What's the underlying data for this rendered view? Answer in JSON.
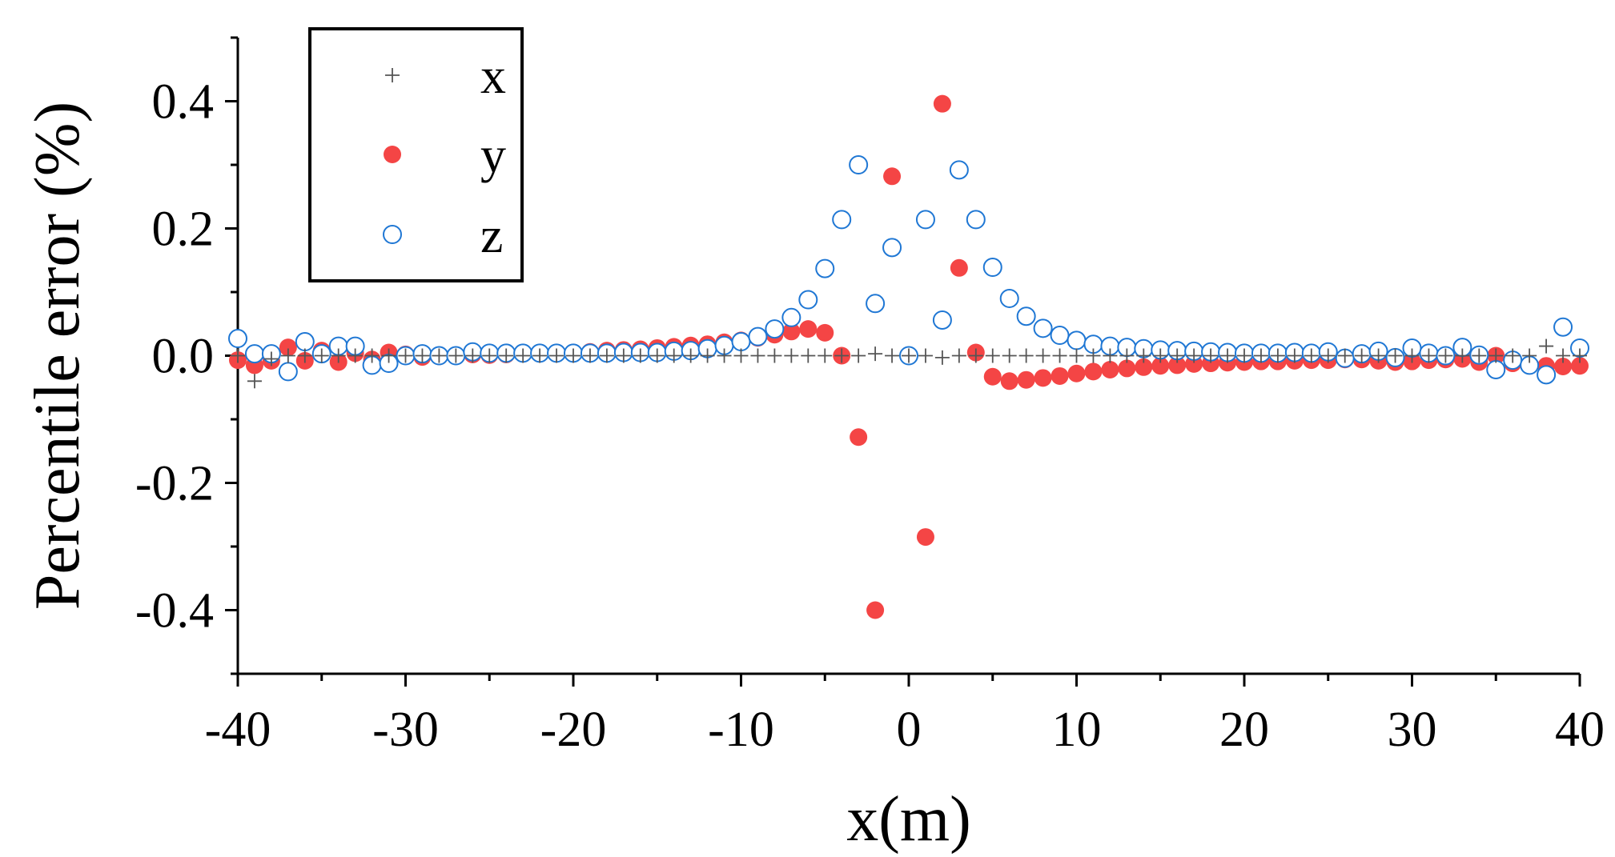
{
  "chart_data": {
    "type": "scatter",
    "title": "",
    "xlabel": "x(m)",
    "ylabel": "Percentile error (%)",
    "xlim": [
      -40,
      40
    ],
    "ylim": [
      -0.5,
      0.5
    ],
    "xticks": [
      -40,
      -30,
      -20,
      -10,
      0,
      10,
      20,
      30,
      40
    ],
    "xtick_labels": [
      "-40",
      "-30",
      "-20",
      "-10",
      "0",
      "10",
      "20",
      "30",
      "40"
    ],
    "yticks": [
      -0.4,
      -0.2,
      0.0,
      0.2,
      0.4
    ],
    "ytick_labels": [
      "-0.4",
      "-0.2",
      "0.0",
      "0.2",
      "0.4"
    ],
    "grid": false,
    "legend_position": "top-left",
    "colors": {
      "x": "#555555",
      "y": "#f44545",
      "z": "#1f77d4"
    },
    "series": [
      {
        "name": "x",
        "marker": "plus",
        "x": [
          -40,
          -39,
          -38,
          -37,
          -36,
          -35,
          -34,
          -33,
          -32,
          -31,
          -30,
          -29,
          -28,
          -27,
          -26,
          -25,
          -24,
          -23,
          -22,
          -21,
          -20,
          -19,
          -18,
          -17,
          -16,
          -15,
          -14,
          -13,
          -12,
          -11,
          -10,
          -9,
          -8,
          -7,
          -6,
          -5,
          -4,
          -3,
          -2,
          -1,
          0,
          1,
          2,
          3,
          4,
          5,
          6,
          7,
          8,
          9,
          10,
          11,
          12,
          13,
          14,
          15,
          16,
          17,
          18,
          19,
          20,
          21,
          22,
          23,
          24,
          25,
          26,
          27,
          28,
          29,
          30,
          31,
          32,
          33,
          34,
          35,
          36,
          37,
          38,
          39,
          40
        ],
        "y": [
          0.0,
          -0.04,
          -0.005,
          0.0,
          0.0,
          0.0,
          0.0,
          0.0,
          0.0,
          0.0,
          0.0,
          0.0,
          0.0,
          0.0,
          0.0,
          0.0,
          0.0,
          0.0,
          0.0,
          0.0,
          0.0,
          0.0,
          0.0,
          0.0,
          0.0,
          0.0,
          0.0,
          0.0,
          0.0,
          0.0,
          0.0,
          0.0,
          0.0,
          0.0,
          0.0,
          0.0,
          0.0,
          0.0,
          0.003,
          0.0,
          0.0,
          0.0,
          -0.003,
          0.0,
          0.0,
          0.0,
          0.0,
          0.0,
          0.0,
          0.0,
          0.0,
          0.0,
          0.0,
          0.0,
          0.0,
          0.0,
          0.0,
          0.0,
          0.0,
          0.0,
          0.0,
          0.0,
          0.0,
          0.0,
          0.0,
          0.0,
          0.0,
          0.0,
          0.0,
          0.0,
          0.0,
          0.0,
          0.0,
          0.0,
          0.0,
          0.0,
          0.0,
          0.0,
          0.015,
          0.0,
          0.0
        ]
      },
      {
        "name": "y",
        "marker": "filled-circle",
        "x": [
          -40,
          -39,
          -38,
          -37,
          -36,
          -35,
          -34,
          -33,
          -32,
          -31,
          -30,
          -29,
          -28,
          -27,
          -26,
          -25,
          -24,
          -23,
          -22,
          -21,
          -20,
          -19,
          -18,
          -17,
          -16,
          -15,
          -14,
          -13,
          -12,
          -11,
          -10,
          -9,
          -8,
          -7,
          -6,
          -5,
          -4,
          -3,
          -2,
          -1,
          0,
          1,
          2,
          3,
          4,
          5,
          6,
          7,
          8,
          9,
          10,
          11,
          12,
          13,
          14,
          15,
          16,
          17,
          18,
          19,
          20,
          21,
          22,
          23,
          24,
          25,
          26,
          27,
          28,
          29,
          30,
          31,
          32,
          33,
          34,
          35,
          36,
          37,
          38,
          39,
          40
        ],
        "y": [
          -0.007,
          -0.015,
          -0.008,
          0.013,
          -0.008,
          0.008,
          -0.01,
          0.004,
          -0.006,
          0.005,
          0.002,
          -0.002,
          -0.001,
          0.0,
          0.002,
          0.001,
          0.002,
          0.003,
          0.003,
          0.004,
          0.005,
          0.006,
          0.008,
          0.009,
          0.01,
          0.012,
          0.014,
          0.016,
          0.018,
          0.021,
          0.024,
          0.028,
          0.033,
          0.038,
          0.042,
          0.036,
          0.0,
          -0.128,
          -0.4,
          0.282,
          0.0,
          -0.285,
          0.396,
          0.138,
          0.005,
          -0.033,
          -0.04,
          -0.038,
          -0.035,
          -0.032,
          -0.028,
          -0.025,
          -0.022,
          -0.02,
          -0.018,
          -0.016,
          -0.015,
          -0.013,
          -0.012,
          -0.011,
          -0.01,
          -0.009,
          -0.009,
          -0.008,
          -0.007,
          -0.007,
          -0.006,
          -0.006,
          -0.008,
          -0.01,
          -0.009,
          -0.007,
          -0.006,
          -0.005,
          -0.01,
          0.0,
          -0.012,
          -0.015,
          -0.016,
          -0.017,
          -0.016
        ]
      },
      {
        "name": "z",
        "marker": "open-circle",
        "x": [
          -40,
          -39,
          -38,
          -37,
          -36,
          -35,
          -34,
          -33,
          -32,
          -31,
          -30,
          -29,
          -28,
          -27,
          -26,
          -25,
          -24,
          -23,
          -22,
          -21,
          -20,
          -19,
          -18,
          -17,
          -16,
          -15,
          -14,
          -13,
          -12,
          -11,
          -10,
          -9,
          -8,
          -7,
          -6,
          -5,
          -4,
          -3,
          -2,
          -1,
          0,
          1,
          2,
          3,
          4,
          5,
          6,
          7,
          8,
          9,
          10,
          11,
          12,
          13,
          14,
          15,
          16,
          17,
          18,
          19,
          20,
          21,
          22,
          23,
          24,
          25,
          26,
          27,
          28,
          29,
          30,
          31,
          32,
          33,
          34,
          35,
          36,
          37,
          38,
          39,
          40
        ],
        "y": [
          0.027,
          0.003,
          0.003,
          -0.025,
          0.022,
          0.003,
          0.015,
          0.015,
          -0.015,
          -0.012,
          0.0,
          0.003,
          0.0,
          0.0,
          0.006,
          0.004,
          0.004,
          0.004,
          0.004,
          0.004,
          0.004,
          0.004,
          0.004,
          0.005,
          0.005,
          0.005,
          0.007,
          0.008,
          0.011,
          0.016,
          0.022,
          0.03,
          0.042,
          0.06,
          0.088,
          0.137,
          0.214,
          0.3,
          0.082,
          0.17,
          0.0,
          0.214,
          0.056,
          0.292,
          0.214,
          0.139,
          0.09,
          0.062,
          0.043,
          0.032,
          0.024,
          0.018,
          0.015,
          0.013,
          0.011,
          0.009,
          0.008,
          0.007,
          0.006,
          0.005,
          0.004,
          0.004,
          0.004,
          0.005,
          0.004,
          0.006,
          -0.004,
          0.003,
          0.007,
          -0.003,
          0.012,
          0.004,
          0.0,
          0.013,
          0.001,
          -0.022,
          -0.007,
          -0.015,
          -0.03,
          0.045,
          0.012
        ]
      }
    ]
  }
}
